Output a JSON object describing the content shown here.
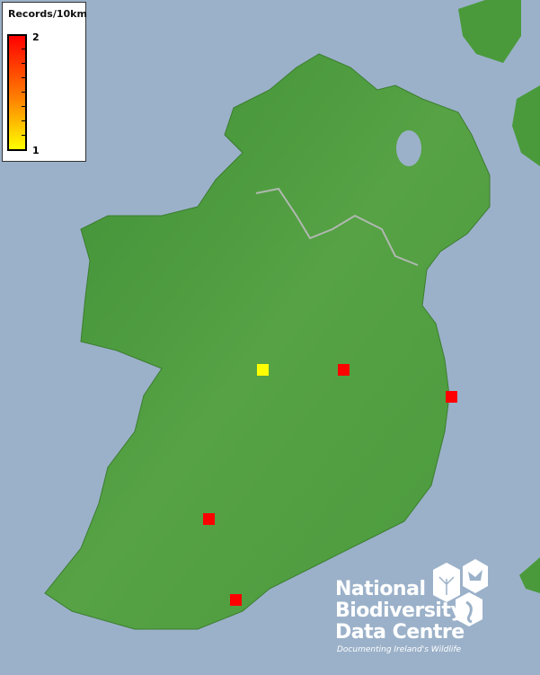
{
  "legend": {
    "title": "Records/10km",
    "max_label": "2",
    "min_label": "1",
    "colors": {
      "max": "#ff0000",
      "min": "#ffff00"
    }
  },
  "records": [
    {
      "value": 1,
      "color": "#ffff00"
    },
    {
      "value": 2,
      "color": "#ff0000"
    },
    {
      "value": 2,
      "color": "#ff0000"
    },
    {
      "value": 2,
      "color": "#ff0000"
    },
    {
      "value": 2,
      "color": "#ff0000"
    }
  ],
  "logo": {
    "line1": "National",
    "line2": "Biodiversity",
    "line3": "Data Centre",
    "tagline": "Documenting Ireland's Wildlife"
  },
  "colors": {
    "sea": "#9bb1c9",
    "land": "#4f9a3f"
  }
}
